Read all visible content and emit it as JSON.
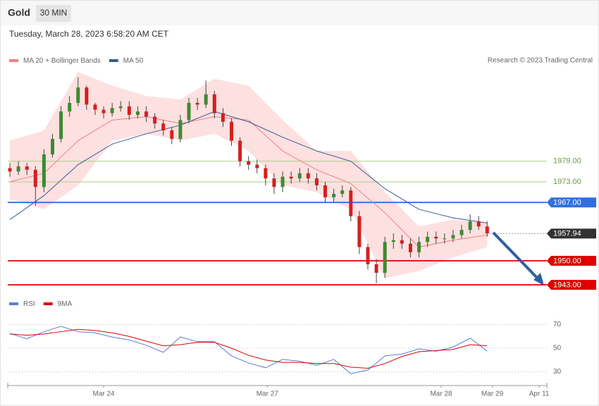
{
  "header": {
    "symbol": "Gold",
    "interval": "30 MIN",
    "timestamp": "Tuesday, March 28, 2023 6:58:20 AM CET"
  },
  "credit": "Research © 2023 Trading Central",
  "chart_data": [
    {
      "type": "candlestick",
      "xlim": [
        -0.25,
        63
      ],
      "ylim": [
        1940,
        2010
      ],
      "candles": {
        "x": [
          0,
          1,
          2,
          3,
          4,
          5,
          6,
          7,
          8,
          9,
          10,
          11,
          12,
          13,
          14,
          15,
          16,
          17,
          18,
          19,
          20,
          21,
          22,
          23,
          24,
          25,
          26,
          27,
          28,
          29,
          30,
          31,
          32,
          33,
          34,
          35,
          36,
          37,
          38,
          39,
          40,
          41,
          42,
          43,
          44,
          45,
          46,
          47,
          48,
          49,
          50,
          51,
          52,
          53,
          54,
          55,
          56
        ],
        "open": [
          1977.0,
          1976.0,
          1977.5,
          1976.5,
          1971.5,
          1981.0,
          1985.5,
          1993.5,
          1996.0,
          2000.5,
          1995.5,
          1994.0,
          1993.0,
          1994.5,
          1995.0,
          1992.5,
          1993.5,
          1992.0,
          1990.0,
          1988.0,
          1985.5,
          1991.0,
          1996.0,
          1995.5,
          1998.5,
          1993.0,
          1990.5,
          1985.0,
          1979.0,
          1978.0,
          1977.0,
          1974.0,
          1971.5,
          1974.5,
          1974.0,
          1975.5,
          1974.0,
          1972.0,
          1968.5,
          1969.5,
          1970.5,
          1963.0,
          1954.0,
          1949.0,
          1946.5,
          1955.5,
          1956.0,
          1955.0,
          1952.5,
          1955.5,
          1957.0,
          1956.5,
          1956.5,
          1957.5,
          1959.0,
          1961.5,
          1960.0
        ],
        "high": [
          1978.5,
          1979,
          1978.5,
          1977.5,
          1982.5,
          1987,
          1995,
          1998,
          2003.5,
          2001,
          1996,
          1995,
          1996,
          1996.5,
          1996.5,
          1995,
          1995,
          1993,
          1991,
          1989,
          1992.5,
          1997.5,
          1997.5,
          2002.5,
          1999.5,
          1994.5,
          1991.5,
          1986,
          1980.5,
          1979.5,
          1978,
          1975.5,
          1976,
          1976,
          1977,
          1977,
          1975.5,
          1973,
          1971,
          1972,
          1971.5,
          1964.5,
          1955,
          1950.5,
          1957,
          1958,
          1957.5,
          1956.5,
          1957,
          1958.5,
          1958.5,
          1958,
          1959,
          1960.5,
          1963.5,
          1963,
          1961.5
        ],
        "low": [
          1974.5,
          1975,
          1975,
          1966,
          1970,
          1980,
          1984.5,
          1992,
          1995,
          1994,
          1992.5,
          1991.5,
          1992,
          1993.5,
          1991,
          1991.5,
          1990.5,
          1988.5,
          1986.5,
          1984,
          1984.5,
          1990,
          1994,
          1994.5,
          1991.5,
          1989,
          1983.5,
          1977.5,
          1976.5,
          1975.5,
          1972,
          1969.5,
          1970,
          1972.5,
          1973,
          1972.5,
          1970.5,
          1967,
          1967,
          1968.5,
          1961.5,
          1952,
          1947.5,
          1943.5,
          1945,
          1953.5,
          1953.5,
          1951,
          1951,
          1954,
          1955,
          1955,
          1955.5,
          1956.5,
          1958,
          1959,
          1957
        ],
        "close": [
          1976.0,
          1977.5,
          1976.5,
          1971.5,
          1981.0,
          1985.5,
          1993.5,
          1996.0,
          2000.5,
          1995.5,
          1994.0,
          1993.0,
          1994.5,
          1995.0,
          1992.5,
          1993.5,
          1992.0,
          1990.0,
          1988.0,
          1985.5,
          1991.0,
          1996.0,
          1995.5,
          1998.5,
          1993.0,
          1990.5,
          1985.0,
          1979.0,
          1978.0,
          1977.0,
          1974.0,
          1971.5,
          1974.5,
          1974.0,
          1975.5,
          1974.0,
          1972.0,
          1968.5,
          1969.5,
          1970.5,
          1963.0,
          1954.0,
          1949.0,
          1946.5,
          1955.5,
          1956.0,
          1955.0,
          1952.5,
          1955.5,
          1957.0,
          1956.5,
          1956.5,
          1957.5,
          1959.0,
          1961.5,
          1960.0,
          1958.0
        ],
        "up_color": "#3d8b2f",
        "down_color": "#d42020"
      },
      "series": [
        {
          "name": "MA 20 + Bollinger Bands",
          "color": "#f08080",
          "band_color": "#fde0e0",
          "x": [
            0,
            4,
            8,
            12,
            16,
            20,
            24,
            28,
            32,
            36,
            40,
            44,
            48,
            52,
            56
          ],
          "values": [
            1973,
            1975.5,
            1985,
            1991,
            1992,
            1990,
            1992,
            1991,
            1982,
            1976.5,
            1972.5,
            1964,
            1954,
            1956,
            1957.5
          ],
          "upper": [
            1985,
            1988,
            2005,
            2001,
            1998,
            1997,
            2003,
            2001,
            1991,
            1982,
            1982,
            1970,
            1960,
            1962,
            1961
          ],
          "lower": [
            1968,
            1965,
            1972,
            1985,
            1987,
            1985,
            1987,
            1982,
            1972,
            1970,
            1965,
            1945,
            1947,
            1951,
            1954
          ]
        },
        {
          "name": "MA 50",
          "color": "#3a5a95",
          "x": [
            0,
            4,
            8,
            12,
            16,
            20,
            24,
            28,
            32,
            36,
            40,
            44,
            48,
            52,
            56
          ],
          "values": [
            1962,
            1969,
            1978,
            1984,
            1987,
            1989.5,
            1993.5,
            1990.5,
            1986,
            1982,
            1979,
            1971,
            1965,
            1962.5,
            1961
          ]
        }
      ],
      "levels": [
        {
          "value": 1979,
          "label": "1979.00",
          "color": "#a8cf8a",
          "style": "text"
        },
        {
          "value": 1973,
          "label": "1973.00",
          "color": "#a8cf8a",
          "style": "text"
        },
        {
          "value": 1967,
          "label": "1967.00",
          "color": "#2f6fe0",
          "style": "tag"
        },
        {
          "value": 1957.94,
          "label": "1957.94",
          "color": "#333333",
          "style": "current"
        },
        {
          "value": 1950,
          "label": "1950.00",
          "color": "#e00000",
          "style": "tag"
        },
        {
          "value": 1943,
          "label": "1943.00",
          "color": "#e00000",
          "style": "tag"
        }
      ]
    },
    {
      "type": "line",
      "xlim": [
        -0.25,
        63
      ],
      "ylim": [
        18.5,
        80
      ],
      "yticks": [
        30,
        50,
        70
      ],
      "grid": true,
      "xticks": [
        {
          "value": 11,
          "label": "Mar 24"
        },
        {
          "value": 30.2,
          "label": "Mar 27"
        },
        {
          "value": 50.6,
          "label": "Mar 28"
        },
        {
          "value": 56.6,
          "label": "Mar 29"
        },
        {
          "value": 62.1,
          "label": "Apr 11"
        }
      ],
      "series": [
        {
          "name": "RSI",
          "color": "#5b7fd6",
          "x": [
            0,
            2,
            4,
            6,
            8,
            10,
            12,
            14,
            16,
            18,
            20,
            22,
            24,
            26,
            28,
            30,
            32,
            34,
            36,
            38,
            40,
            42,
            44,
            46,
            48,
            50,
            52,
            54,
            56
          ],
          "values": [
            62.5,
            58,
            64,
            68.5,
            64,
            63,
            59.5,
            57,
            52.5,
            46.5,
            59.5,
            55.5,
            55.5,
            43.5,
            37.5,
            33.5,
            40.5,
            39,
            35.5,
            40.5,
            28.5,
            31.5,
            43.5,
            45,
            49.5,
            47.5,
            51,
            58.5,
            47.5
          ]
        },
        {
          "name": "9MA",
          "color": "#e00000",
          "x": [
            0,
            2,
            4,
            6,
            8,
            10,
            12,
            14,
            16,
            18,
            20,
            22,
            24,
            26,
            28,
            30,
            32,
            34,
            36,
            38,
            40,
            42,
            44,
            46,
            48,
            50,
            52,
            54,
            56
          ],
          "values": [
            62,
            61,
            62,
            64,
            66,
            65,
            63,
            60,
            56,
            52,
            53,
            55,
            55,
            50,
            44,
            40,
            38,
            38,
            37,
            37,
            34,
            33,
            37,
            43,
            47,
            48,
            49,
            53,
            52
          ]
        }
      ]
    }
  ]
}
